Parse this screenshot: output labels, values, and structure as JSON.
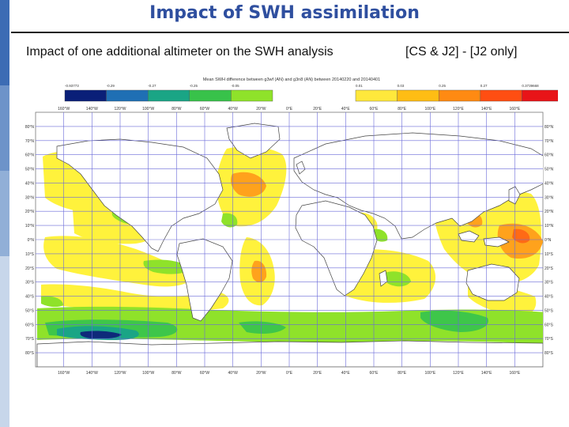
{
  "slide": {
    "title": "Impact of SWH assimilation",
    "subtitle_left": "Impact of one additional altimeter on the SWH analysis",
    "subtitle_right": "[CS & J2]  - [J2 only]"
  },
  "map": {
    "title": "Mean SWH difference between g3wf (AN) and g3n8 (AN) between 20140220 and 20140401",
    "projection": "equirectangular",
    "colorbar": {
      "labels": [
        "-0.93773",
        "-0.29",
        "-0.27",
        "-0.25",
        "-0.05",
        "0.01",
        "0.03",
        "0.25",
        "0.27",
        "0.3739668"
      ],
      "negative_colors": [
        "#0a1f78",
        "#1f6fb4",
        "#1aa585",
        "#38c24a",
        "#8fe22a"
      ],
      "positive_colors": [
        "#ffe83c",
        "#ffbd14",
        "#ff8a12",
        "#ff4e12",
        "#e81418"
      ]
    },
    "lon_labels": [
      "160°W",
      "140°W",
      "120°W",
      "100°W",
      "80°W",
      "60°W",
      "40°W",
      "20°W",
      "0°E",
      "20°E",
      "40°E",
      "60°E",
      "80°E",
      "100°E",
      "120°E",
      "140°E",
      "160°E"
    ],
    "lat_labels": [
      "80°N",
      "70°N",
      "60°N",
      "50°N",
      "40°N",
      "30°N",
      "20°N",
      "10°N",
      "0°N",
      "10°S",
      "20°S",
      "30°S",
      "40°S",
      "50°S",
      "60°S",
      "70°S",
      "80°S"
    ],
    "colors": {
      "grid": "#6a6ad8",
      "coast": "#444444",
      "light_yellow": "#fff23c",
      "yellow": "#ffd220",
      "orange": "#ffa21c",
      "dark_orange": "#ff6a16",
      "light_green": "#8fe22a",
      "green": "#3ec64a",
      "teal": "#1aa585",
      "dark_blue": "#0e2a7a"
    }
  }
}
